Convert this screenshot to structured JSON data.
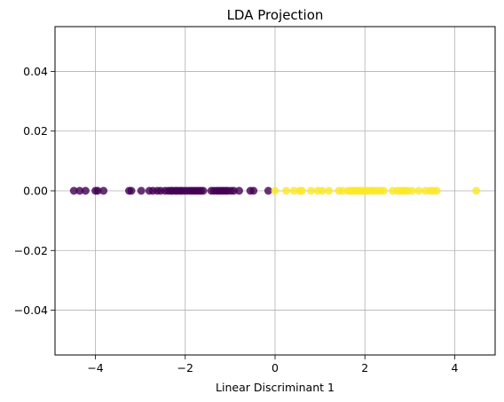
{
  "chart_data": {
    "type": "scatter",
    "title": "LDA Projection",
    "xlabel": "Linear Discriminant 1",
    "ylabel": "",
    "xlim": [
      -4.9,
      4.9
    ],
    "ylim": [
      -0.055,
      0.055
    ],
    "grid": true,
    "legend": "none",
    "xticks": [
      -4,
      -2,
      0,
      2,
      4
    ],
    "xtick_labels": [
      "−4",
      "−2",
      "0",
      "2",
      "4"
    ],
    "yticks": [
      -0.04,
      -0.02,
      0.0,
      0.02,
      0.04
    ],
    "ytick_labels": [
      "−0.04",
      "−0.02",
      "0.00",
      "0.02",
      "0.04"
    ],
    "series": [
      {
        "color": "#440154",
        "points": [
          {
            "x": -4.48,
            "y": 0
          },
          {
            "x": -4.35,
            "y": 0
          },
          {
            "x": -4.22,
            "y": 0
          },
          {
            "x": -4.0,
            "y": 0
          },
          {
            "x": -3.95,
            "y": 0
          },
          {
            "x": -3.82,
            "y": 0
          },
          {
            "x": -3.25,
            "y": 0
          },
          {
            "x": -3.2,
            "y": 0
          },
          {
            "x": -2.98,
            "y": 0
          },
          {
            "x": -2.8,
            "y": 0
          },
          {
            "x": -2.72,
            "y": 0
          },
          {
            "x": -2.62,
            "y": 0
          },
          {
            "x": -2.55,
            "y": 0
          },
          {
            "x": -2.45,
            "y": 0
          },
          {
            "x": -2.38,
            "y": 0
          },
          {
            "x": -2.32,
            "y": 0
          },
          {
            "x": -2.28,
            "y": 0
          },
          {
            "x": -2.22,
            "y": 0
          },
          {
            "x": -2.18,
            "y": 0
          },
          {
            "x": -2.12,
            "y": 0
          },
          {
            "x": -2.08,
            "y": 0
          },
          {
            "x": -2.02,
            "y": 0
          },
          {
            "x": -1.96,
            "y": 0
          },
          {
            "x": -1.9,
            "y": 0
          },
          {
            "x": -1.85,
            "y": 0
          },
          {
            "x": -1.8,
            "y": 0
          },
          {
            "x": -1.75,
            "y": 0
          },
          {
            "x": -1.7,
            "y": 0
          },
          {
            "x": -1.65,
            "y": 0
          },
          {
            "x": -1.6,
            "y": 0
          },
          {
            "x": -1.42,
            "y": 0
          },
          {
            "x": -1.36,
            "y": 0
          },
          {
            "x": -1.3,
            "y": 0
          },
          {
            "x": -1.25,
            "y": 0
          },
          {
            "x": -1.2,
            "y": 0
          },
          {
            "x": -1.15,
            "y": 0
          },
          {
            "x": -1.1,
            "y": 0
          },
          {
            "x": -1.05,
            "y": 0
          },
          {
            "x": -0.98,
            "y": 0
          },
          {
            "x": -0.92,
            "y": 0
          },
          {
            "x": -0.8,
            "y": 0
          },
          {
            "x": -0.55,
            "y": 0
          },
          {
            "x": -0.48,
            "y": 0
          },
          {
            "x": -0.15,
            "y": 0
          }
        ]
      },
      {
        "color": "#fde725",
        "points": [
          {
            "x": 0.0,
            "y": 0
          },
          {
            "x": 0.25,
            "y": 0
          },
          {
            "x": 0.42,
            "y": 0
          },
          {
            "x": 0.55,
            "y": 0
          },
          {
            "x": 0.6,
            "y": 0
          },
          {
            "x": 0.8,
            "y": 0
          },
          {
            "x": 0.95,
            "y": 0
          },
          {
            "x": 1.05,
            "y": 0
          },
          {
            "x": 1.2,
            "y": 0
          },
          {
            "x": 1.42,
            "y": 0
          },
          {
            "x": 1.5,
            "y": 0
          },
          {
            "x": 1.62,
            "y": 0
          },
          {
            "x": 1.68,
            "y": 0
          },
          {
            "x": 1.72,
            "y": 0
          },
          {
            "x": 1.78,
            "y": 0
          },
          {
            "x": 1.83,
            "y": 0
          },
          {
            "x": 1.88,
            "y": 0
          },
          {
            "x": 1.92,
            "y": 0
          },
          {
            "x": 1.98,
            "y": 0
          },
          {
            "x": 2.03,
            "y": 0
          },
          {
            "x": 2.08,
            "y": 0
          },
          {
            "x": 2.15,
            "y": 0
          },
          {
            "x": 2.2,
            "y": 0
          },
          {
            "x": 2.28,
            "y": 0
          },
          {
            "x": 2.35,
            "y": 0
          },
          {
            "x": 2.42,
            "y": 0
          },
          {
            "x": 2.62,
            "y": 0
          },
          {
            "x": 2.72,
            "y": 0
          },
          {
            "x": 2.78,
            "y": 0
          },
          {
            "x": 2.85,
            "y": 0
          },
          {
            "x": 2.9,
            "y": 0
          },
          {
            "x": 2.95,
            "y": 0
          },
          {
            "x": 3.05,
            "y": 0
          },
          {
            "x": 3.2,
            "y": 0
          },
          {
            "x": 3.35,
            "y": 0
          },
          {
            "x": 3.45,
            "y": 0
          },
          {
            "x": 3.52,
            "y": 0
          },
          {
            "x": 3.6,
            "y": 0
          },
          {
            "x": 4.48,
            "y": 0
          }
        ]
      }
    ]
  }
}
